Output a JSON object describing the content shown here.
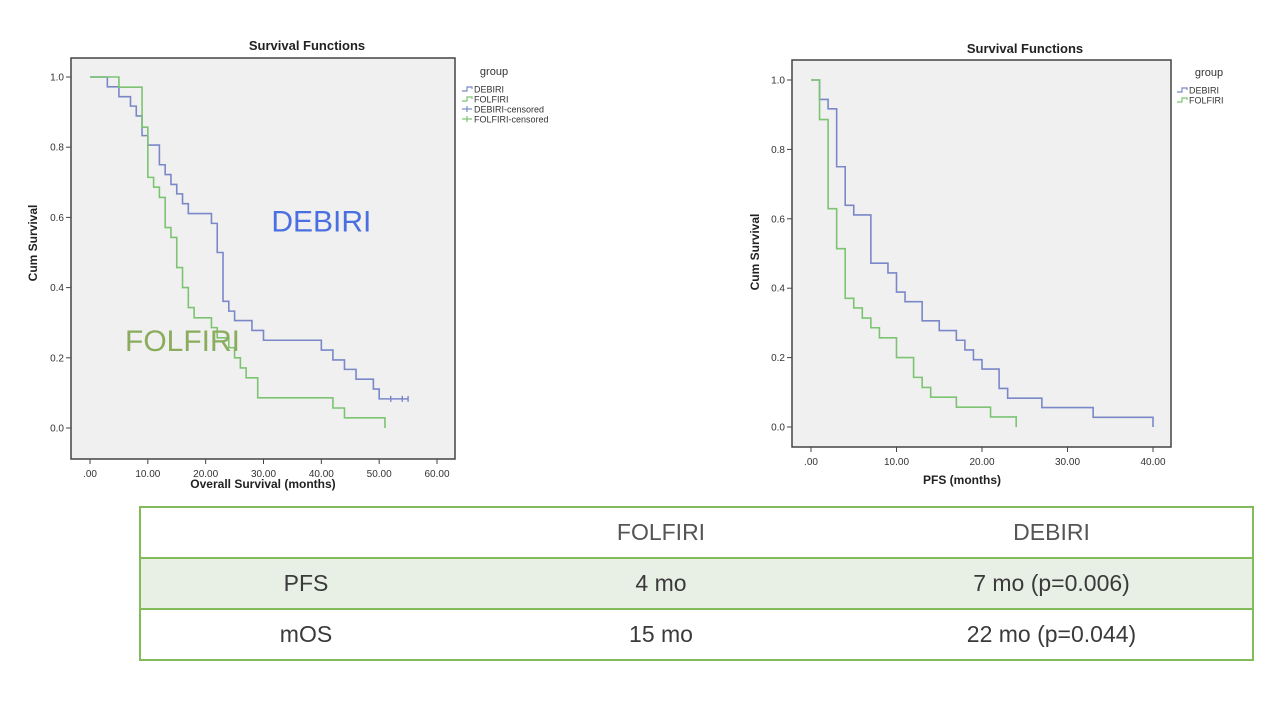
{
  "chart_data": [
    {
      "type": "line",
      "subtype": "kaplan-meier-step",
      "title": "Survival Functions",
      "xlabel": "Overall Survival (months)",
      "ylabel": "Cum Survival",
      "xlim": [
        0,
        60
      ],
      "ylim": [
        0,
        1
      ],
      "x_ticks": [
        ".00",
        "10.00",
        "20.00",
        "30.00",
        "40.00",
        "50.00",
        "60.00"
      ],
      "x_tick_values": [
        0,
        10,
        20,
        30,
        40,
        50,
        60
      ],
      "y_ticks": [
        "0.0",
        "0.2",
        "0.4",
        "0.6",
        "0.8",
        "1.0"
      ],
      "y_tick_values": [
        0,
        0.2,
        0.4,
        0.6,
        0.8,
        1.0
      ],
      "grid": false,
      "legend_title": "group",
      "legend_position": "right",
      "legend": [
        "DEBIRI",
        "FOLFIRI",
        "DEBIRI-censored",
        "FOLFIRI-censored"
      ],
      "annotations": [
        {
          "text": "DEBIRI",
          "color": "#4a6fe0",
          "x": 40,
          "y": 0.56
        },
        {
          "text": "FOLFIRI",
          "color": "#8aac5c",
          "x": 16,
          "y": 0.22
        }
      ],
      "series": [
        {
          "name": "DEBIRI",
          "color": "#7a88c8",
          "steps": [
            [
              0,
              1.0
            ],
            [
              3,
              0.972
            ],
            [
              5,
              0.944
            ],
            [
              7,
              0.917
            ],
            [
              8,
              0.889
            ],
            [
              9,
              0.833
            ],
            [
              10,
              0.806
            ],
            [
              12,
              0.75
            ],
            [
              13,
              0.722
            ],
            [
              14,
              0.694
            ],
            [
              15,
              0.667
            ],
            [
              16,
              0.639
            ],
            [
              17,
              0.611
            ],
            [
              21,
              0.583
            ],
            [
              22,
              0.5
            ],
            [
              23,
              0.361
            ],
            [
              24,
              0.333
            ],
            [
              25,
              0.306
            ],
            [
              28,
              0.278
            ],
            [
              30,
              0.25
            ],
            [
              40,
              0.222
            ],
            [
              42,
              0.194
            ],
            [
              44,
              0.167
            ],
            [
              46,
              0.139
            ],
            [
              49,
              0.111
            ],
            [
              50,
              0.083
            ],
            [
              55,
              0.083
            ]
          ],
          "censored": [
            52,
            54,
            55
          ]
        },
        {
          "name": "FOLFIRI",
          "color": "#7cc472",
          "steps": [
            [
              0,
              1.0
            ],
            [
              5,
              0.971
            ],
            [
              9,
              0.857
            ],
            [
              10,
              0.714
            ],
            [
              11,
              0.686
            ],
            [
              12,
              0.657
            ],
            [
              13,
              0.571
            ],
            [
              14,
              0.543
            ],
            [
              15,
              0.457
            ],
            [
              16,
              0.4
            ],
            [
              17,
              0.343
            ],
            [
              18,
              0.314
            ],
            [
              21,
              0.286
            ],
            [
              22,
              0.257
            ],
            [
              24,
              0.229
            ],
            [
              25,
              0.2
            ],
            [
              26,
              0.171
            ],
            [
              27,
              0.143
            ],
            [
              29,
              0.086
            ],
            [
              42,
              0.057
            ],
            [
              44,
              0.029
            ],
            [
              51,
              0.0
            ]
          ],
          "censored": []
        }
      ]
    },
    {
      "type": "line",
      "subtype": "kaplan-meier-step",
      "title": "Survival Functions",
      "xlabel": "PFS (months)",
      "ylabel": "Cum Survival",
      "xlim": [
        0,
        40
      ],
      "ylim": [
        0,
        1
      ],
      "x_ticks": [
        ".00",
        "10.00",
        "20.00",
        "30.00",
        "40.00"
      ],
      "x_tick_values": [
        0,
        10,
        20,
        30,
        40
      ],
      "y_ticks": [
        "0.0",
        "0.2",
        "0.4",
        "0.6",
        "0.8",
        "1.0"
      ],
      "y_tick_values": [
        0,
        0.2,
        0.4,
        0.6,
        0.8,
        1.0
      ],
      "grid": false,
      "legend_title": "group",
      "legend_position": "right",
      "legend": [
        "DEBIRI",
        "FOLFIRI"
      ],
      "series": [
        {
          "name": "DEBIRI",
          "color": "#7a88c8",
          "steps": [
            [
              0,
              1.0
            ],
            [
              1,
              0.944
            ],
            [
              2,
              0.917
            ],
            [
              3,
              0.75
            ],
            [
              4,
              0.639
            ],
            [
              5,
              0.611
            ],
            [
              7,
              0.472
            ],
            [
              9,
              0.444
            ],
            [
              10,
              0.389
            ],
            [
              11,
              0.361
            ],
            [
              13,
              0.306
            ],
            [
              15,
              0.278
            ],
            [
              17,
              0.25
            ],
            [
              18,
              0.222
            ],
            [
              19,
              0.194
            ],
            [
              20,
              0.167
            ],
            [
              22,
              0.111
            ],
            [
              23,
              0.083
            ],
            [
              27,
              0.056
            ],
            [
              33,
              0.028
            ],
            [
              40,
              0.0
            ]
          ],
          "censored": []
        },
        {
          "name": "FOLFIRI",
          "color": "#7cc472",
          "steps": [
            [
              0,
              1.0
            ],
            [
              1,
              0.886
            ],
            [
              2,
              0.629
            ],
            [
              3,
              0.514
            ],
            [
              4,
              0.371
            ],
            [
              5,
              0.343
            ],
            [
              6,
              0.314
            ],
            [
              7,
              0.286
            ],
            [
              8,
              0.257
            ],
            [
              10,
              0.2
            ],
            [
              12,
              0.143
            ],
            [
              13,
              0.114
            ],
            [
              14,
              0.086
            ],
            [
              17,
              0.057
            ],
            [
              21,
              0.029
            ],
            [
              24,
              0.0
            ]
          ],
          "censored": []
        }
      ]
    }
  ],
  "table": {
    "headers": [
      "",
      "FOLFIRI",
      "DEBIRI"
    ],
    "rows": [
      [
        "PFS",
        "4 mo",
        "7 mo (p=0.006)"
      ],
      [
        "mOS",
        "15 mo",
        "22 mo (p=0.044)"
      ]
    ],
    "border_color": "#82bb5a",
    "shaded_row_color": "#e8efe4"
  }
}
